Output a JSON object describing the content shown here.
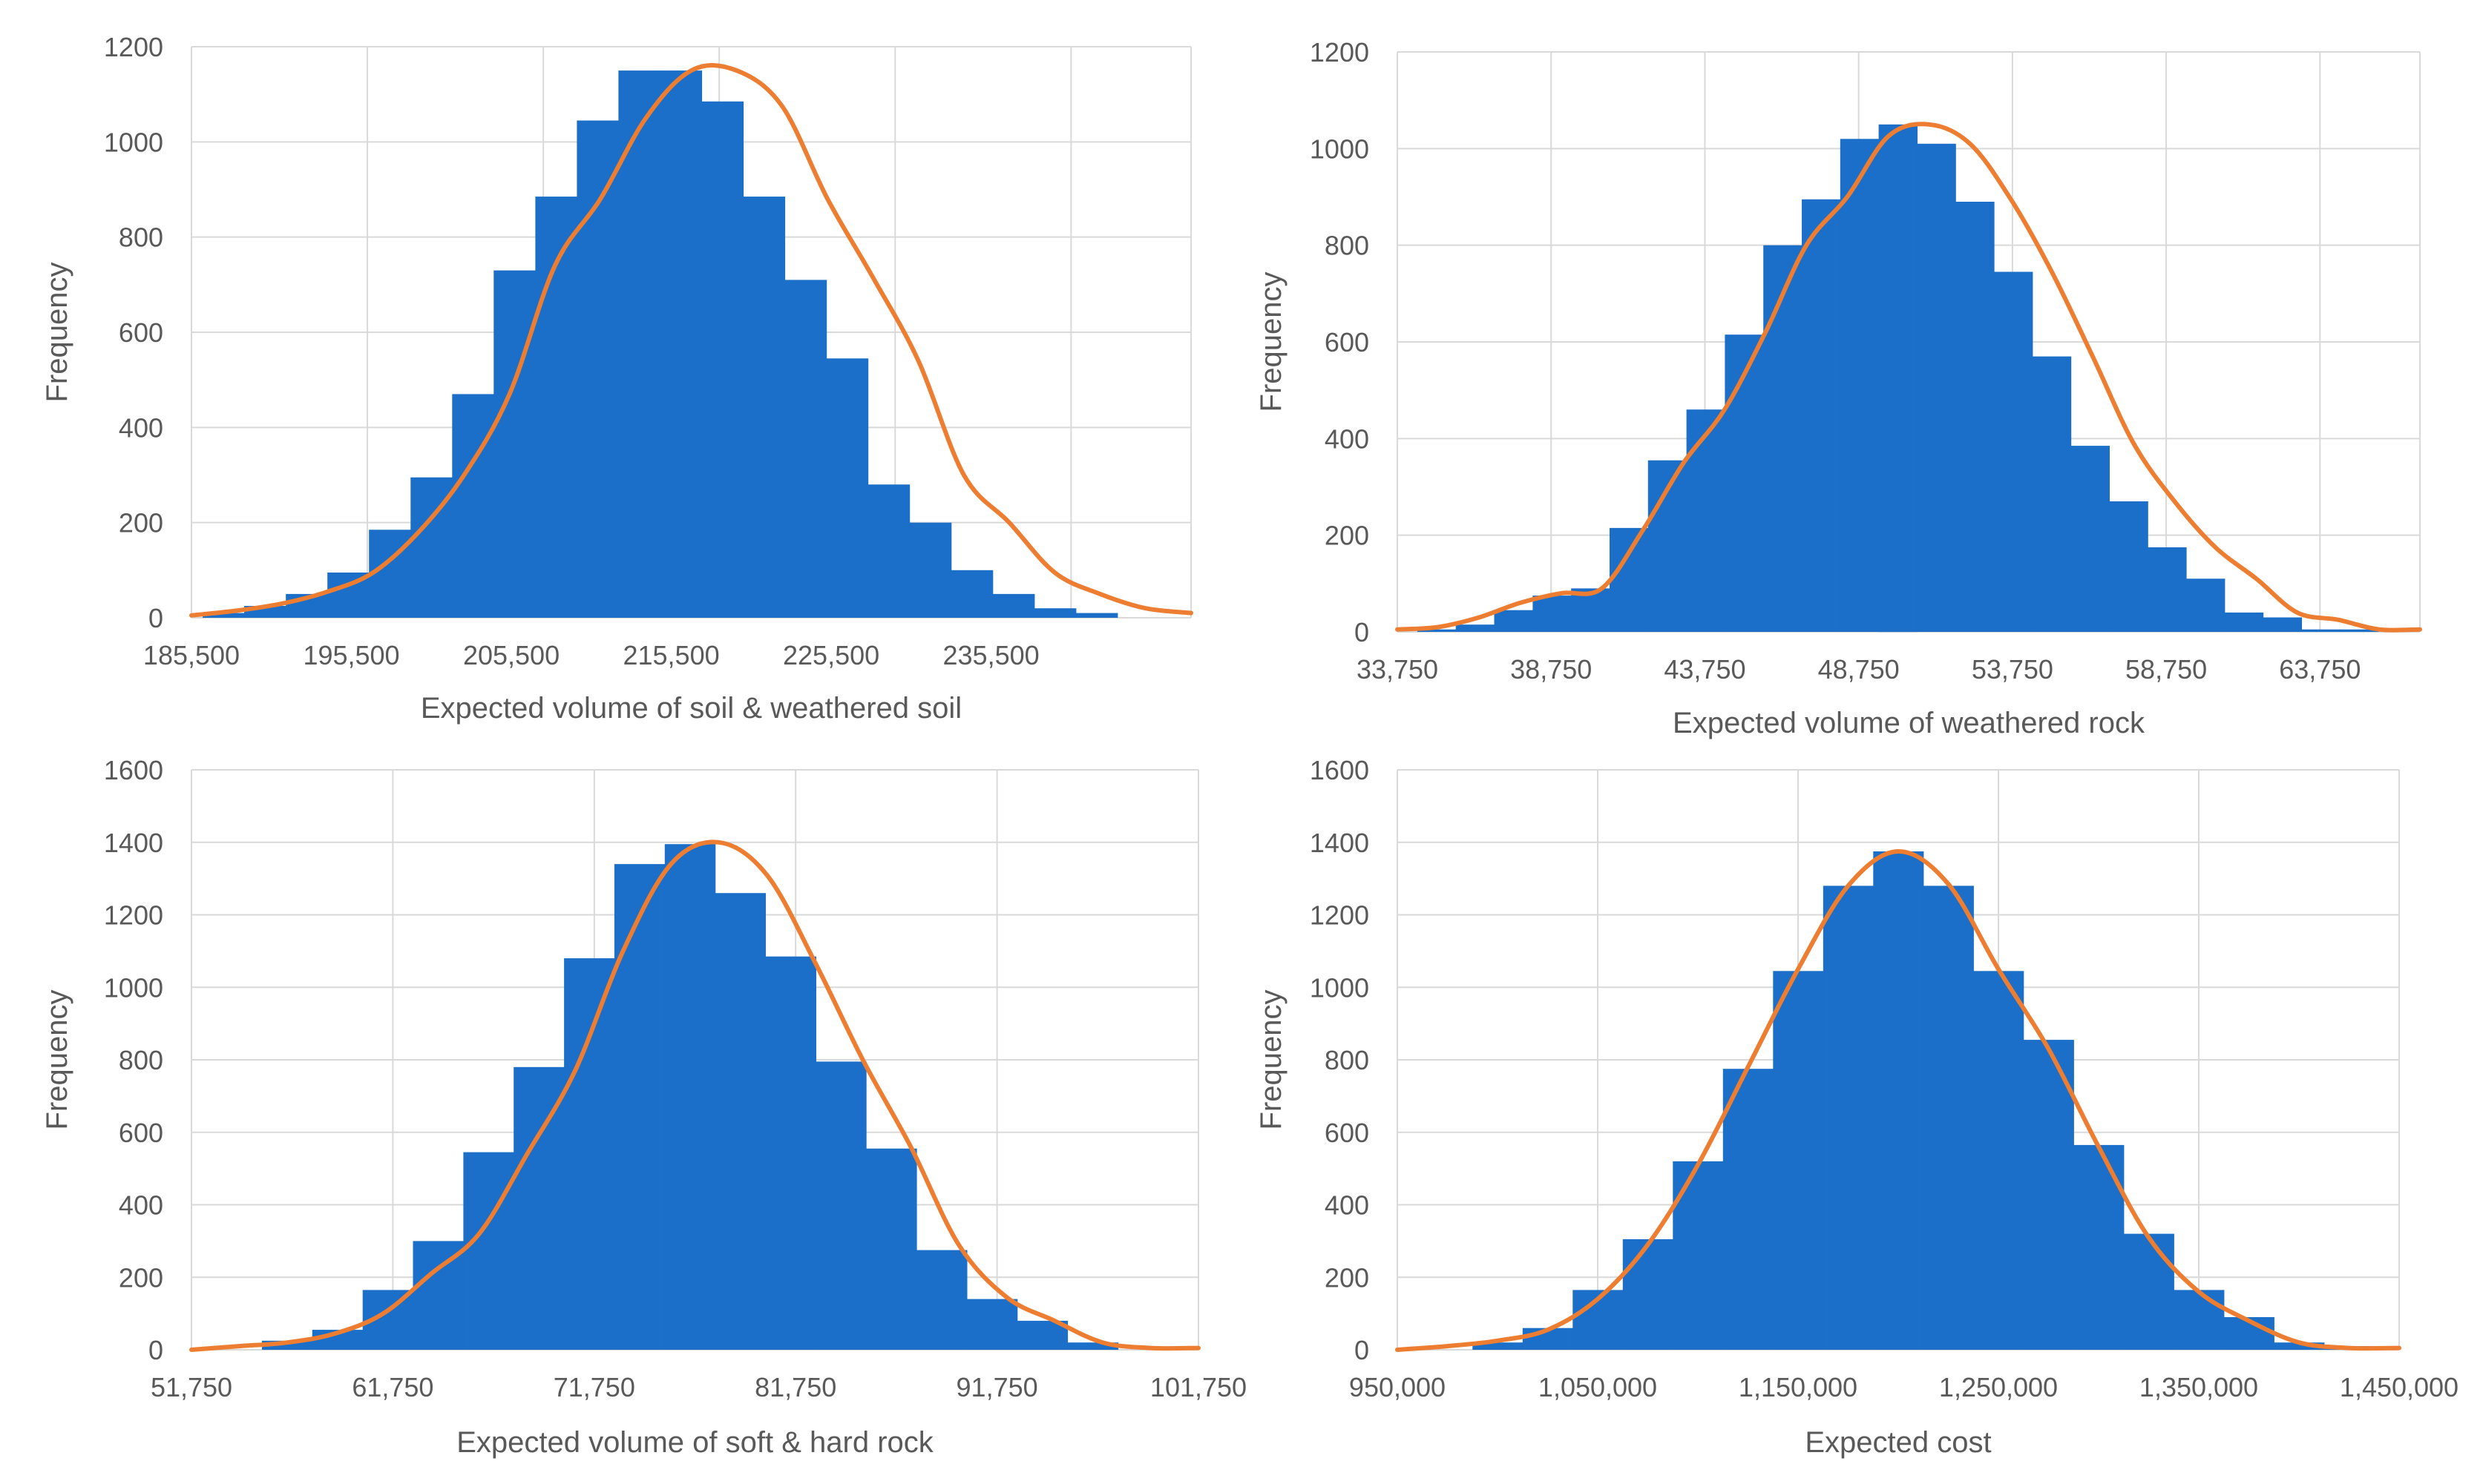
{
  "colors": {
    "bar": "#1b6fc8",
    "curve": "#ed7d31",
    "grid": "#d9d9d9",
    "text": "#595959"
  },
  "chart_data": [
    {
      "type": "bar",
      "title": "",
      "xlabel": "Expected volume of soil & weathered soil",
      "ylabel": "Frequency",
      "xlim": [
        185500,
        248000
      ],
      "ylim": [
        0,
        1200
      ],
      "x_ticks": [
        185500,
        195500,
        205500,
        215500,
        225500,
        235500
      ],
      "x_tick_labels": [
        "185,500",
        "195,500",
        "205,500",
        "215,500",
        "225,500",
        "235,500"
      ],
      "y_ticks": [
        0,
        200,
        400,
        600,
        800,
        1000,
        1200
      ],
      "y_tick_labels": [
        "0",
        "200",
        "400",
        "600",
        "800",
        "1000",
        "1200"
      ],
      "vgrid": [
        185500,
        196500,
        207500,
        218500,
        229500,
        240500,
        248000
      ],
      "bin_width": 2600,
      "bin_start": 186200,
      "values": [
        10,
        25,
        50,
        95,
        185,
        295,
        470,
        730,
        885,
        1045,
        1150,
        1150,
        1085,
        885,
        710,
        545,
        280,
        200,
        100,
        50,
        20,
        10
      ],
      "series": [
        {
          "name": "Fitted curve",
          "values": [
            5,
            15,
            30,
            55,
            95,
            180,
            300,
            470,
            740,
            880,
            1050,
            1150,
            1150,
            1075,
            880,
            715,
            540,
            300,
            200,
            95,
            50,
            20,
            10
          ]
        }
      ]
    },
    {
      "type": "bar",
      "title": "",
      "xlabel": "Expected volume of weathered rock",
      "ylabel": "Frequency",
      "xlim": [
        33750,
        67000
      ],
      "ylim": [
        0,
        1200
      ],
      "x_ticks": [
        33750,
        38750,
        43750,
        48750,
        53750,
        58750,
        63750
      ],
      "x_tick_labels": [
        "33,750",
        "38,750",
        "43,750",
        "48,750",
        "53,750",
        "58,750",
        "63,750"
      ],
      "y_ticks": [
        0,
        200,
        400,
        600,
        800,
        1000,
        1200
      ],
      "y_tick_labels": [
        "0",
        "200",
        "400",
        "600",
        "800",
        "1000",
        "1200"
      ],
      "vgrid": [
        33750,
        38750,
        43750,
        48750,
        53750,
        58750,
        63750,
        67000
      ],
      "bin_width": 1250,
      "bin_start": 34400,
      "values": [
        5,
        15,
        45,
        75,
        90,
        215,
        355,
        460,
        615,
        800,
        895,
        1020,
        1050,
        1010,
        890,
        745,
        570,
        385,
        270,
        175,
        110,
        40,
        30,
        5,
        5
      ],
      "series": [
        {
          "name": "Fitted curve",
          "values": [
            5,
            10,
            30,
            60,
            80,
            90,
            210,
            350,
            460,
            620,
            800,
            900,
            1025,
            1050,
            1010,
            895,
            745,
            570,
            390,
            270,
            175,
            110,
            40,
            25,
            5,
            5
          ]
        }
      ]
    },
    {
      "type": "bar",
      "title": "",
      "xlabel": "Expected volume of soft & hard rock",
      "ylabel": "Frequency",
      "xlim": [
        51750,
        101750
      ],
      "ylim": [
        0,
        1600
      ],
      "x_ticks": [
        51750,
        61750,
        71750,
        81750,
        91750,
        101750
      ],
      "x_tick_labels": [
        "51,750",
        "61,750",
        "71,750",
        "81,750",
        "91,750",
        "101,750"
      ],
      "y_ticks": [
        0,
        200,
        400,
        600,
        800,
        1000,
        1200,
        1400,
        1600
      ],
      "y_tick_labels": [
        "0",
        "200",
        "400",
        "600",
        "800",
        "1000",
        "1200",
        "1400",
        "1600"
      ],
      "vgrid": [
        51750,
        61750,
        71750,
        81750,
        91750,
        101750
      ],
      "bin_width": 2500,
      "bin_start": 55250,
      "values": [
        25,
        55,
        165,
        300,
        545,
        780,
        1080,
        1340,
        1395,
        1260,
        1085,
        795,
        555,
        275,
        140,
        80,
        20
      ],
      "series": [
        {
          "name": "Fitted curve",
          "values": [
            0,
            10,
            20,
            45,
            100,
            210,
            320,
            540,
            770,
            1100,
            1340,
            1400,
            1310,
            1070,
            800,
            560,
            290,
            145,
            80,
            20,
            5,
            5
          ]
        }
      ]
    },
    {
      "type": "bar",
      "title": "",
      "xlabel": "Expected cost",
      "ylabel": "Frequency",
      "xlim": [
        950000,
        1450000
      ],
      "ylim": [
        0,
        1600
      ],
      "x_ticks": [
        950000,
        1050000,
        1150000,
        1250000,
        1350000,
        1450000
      ],
      "x_tick_labels": [
        "950,000",
        "1,050,000",
        "1,150,000",
        "1,250,000",
        "1,350,000",
        "1,450,000"
      ],
      "y_ticks": [
        0,
        200,
        400,
        600,
        800,
        1000,
        1200,
        1400,
        1600
      ],
      "y_tick_labels": [
        "0",
        "200",
        "400",
        "600",
        "800",
        "1000",
        "1200",
        "1400",
        "1600"
      ],
      "vgrid": [
        950000,
        1050000,
        1150000,
        1250000,
        1350000,
        1450000
      ],
      "bin_width": 25000,
      "bin_start": 987500,
      "values": [
        20,
        60,
        165,
        305,
        520,
        775,
        1045,
        1280,
        1375,
        1280,
        1045,
        855,
        565,
        320,
        165,
        90,
        20,
        10
      ],
      "series": [
        {
          "name": "Fitted curve",
          "values": [
            0,
            10,
            25,
            55,
            140,
            290,
            510,
            780,
            1050,
            1280,
            1375,
            1285,
            1050,
            830,
            560,
            310,
            160,
            80,
            20,
            5,
            5
          ]
        }
      ]
    }
  ]
}
